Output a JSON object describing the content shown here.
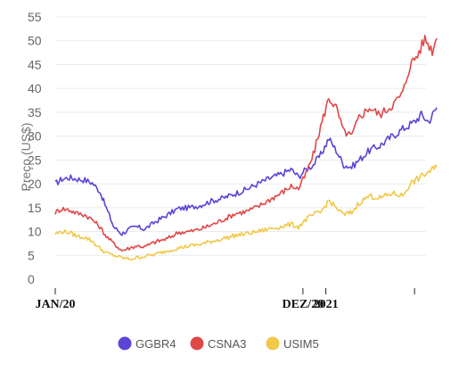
{
  "chart_data": {
    "type": "line",
    "ylabel": "Preço (US$)",
    "ylim": [
      0,
      55
    ],
    "yticks": [
      0,
      5,
      10,
      15,
      20,
      25,
      30,
      35,
      40,
      45,
      50,
      55
    ],
    "xlim": [
      "2020-01-01",
      "2021-05-31"
    ],
    "xticks": [
      {
        "label": "JAN/20",
        "date": "2020-01-01"
      },
      {
        "label": "DEZ/20",
        "date": "2020-12-01"
      },
      {
        "label": "2021",
        "date": "2021-01-01"
      }
    ],
    "grid": "horizontal",
    "legend_position": "bottom",
    "series": [
      {
        "name": "GGBR4",
        "color": "#5b44d6",
        "points": [
          [
            "2020-01-01",
            20.0
          ],
          [
            "2020-01-10",
            21.0
          ],
          [
            "2020-01-20",
            21.3
          ],
          [
            "2020-01-31",
            21.0
          ],
          [
            "2020-02-10",
            20.8
          ],
          [
            "2020-02-20",
            20.2
          ],
          [
            "2020-03-01",
            18.5
          ],
          [
            "2020-03-10",
            15.0
          ],
          [
            "2020-03-20",
            11.0
          ],
          [
            "2020-03-31",
            9.5
          ],
          [
            "2020-04-10",
            10.5
          ],
          [
            "2020-04-20",
            11.0
          ],
          [
            "2020-05-01",
            10.5
          ],
          [
            "2020-05-15",
            12.0
          ],
          [
            "2020-06-01",
            13.5
          ],
          [
            "2020-06-15",
            14.8
          ],
          [
            "2020-07-01",
            15.0
          ],
          [
            "2020-07-15",
            15.5
          ],
          [
            "2020-08-01",
            16.5
          ],
          [
            "2020-08-15",
            17.0
          ],
          [
            "2020-09-01",
            18.0
          ],
          [
            "2020-09-15",
            18.8
          ],
          [
            "2020-10-01",
            20.0
          ],
          [
            "2020-10-15",
            21.0
          ],
          [
            "2020-11-01",
            22.0
          ],
          [
            "2020-11-15",
            23.0
          ],
          [
            "2020-11-25",
            21.5
          ],
          [
            "2020-12-05",
            23.0
          ],
          [
            "2020-12-15",
            24.0
          ],
          [
            "2020-12-25",
            26.0
          ],
          [
            "2021-01-05",
            29.5
          ],
          [
            "2021-01-15",
            27.0
          ],
          [
            "2021-01-25",
            24.0
          ],
          [
            "2021-02-05",
            23.5
          ],
          [
            "2021-02-15",
            25.0
          ],
          [
            "2021-03-01",
            27.0
          ],
          [
            "2021-03-15",
            28.0
          ],
          [
            "2021-04-01",
            30.0
          ],
          [
            "2021-04-15",
            31.5
          ],
          [
            "2021-05-01",
            33.0
          ],
          [
            "2021-05-10",
            34.5
          ],
          [
            "2021-05-20",
            33.0
          ],
          [
            "2021-05-31",
            36.0
          ]
        ]
      },
      {
        "name": "CSNA3",
        "color": "#e04848",
        "points": [
          [
            "2020-01-01",
            14.0
          ],
          [
            "2020-01-10",
            14.8
          ],
          [
            "2020-01-20",
            14.5
          ],
          [
            "2020-01-31",
            13.8
          ],
          [
            "2020-02-10",
            13.5
          ],
          [
            "2020-02-20",
            12.5
          ],
          [
            "2020-03-01",
            11.0
          ],
          [
            "2020-03-10",
            9.0
          ],
          [
            "2020-03-20",
            7.5
          ],
          [
            "2020-03-31",
            6.0
          ],
          [
            "2020-04-10",
            6.5
          ],
          [
            "2020-04-20",
            7.0
          ],
          [
            "2020-05-01",
            6.8
          ],
          [
            "2020-05-15",
            7.8
          ],
          [
            "2020-06-01",
            8.5
          ],
          [
            "2020-06-15",
            9.8
          ],
          [
            "2020-07-01",
            10.0
          ],
          [
            "2020-07-15",
            10.5
          ],
          [
            "2020-08-01",
            11.5
          ],
          [
            "2020-08-15",
            12.5
          ],
          [
            "2020-09-01",
            13.8
          ],
          [
            "2020-09-15",
            14.2
          ],
          [
            "2020-10-01",
            15.2
          ],
          [
            "2020-10-15",
            16.5
          ],
          [
            "2020-11-01",
            18.0
          ],
          [
            "2020-11-15",
            19.5
          ],
          [
            "2020-11-25",
            19.0
          ],
          [
            "2020-12-05",
            22.0
          ],
          [
            "2020-12-15",
            26.0
          ],
          [
            "2020-12-25",
            32.0
          ],
          [
            "2021-01-05",
            38.0
          ],
          [
            "2021-01-15",
            36.0
          ],
          [
            "2021-01-25",
            31.0
          ],
          [
            "2021-02-05",
            30.0
          ],
          [
            "2021-02-15",
            34.0
          ],
          [
            "2021-03-01",
            36.0
          ],
          [
            "2021-03-15",
            34.5
          ],
          [
            "2021-04-01",
            36.5
          ],
          [
            "2021-04-15",
            39.0
          ],
          [
            "2021-04-25",
            45.0
          ],
          [
            "2021-05-05",
            47.0
          ],
          [
            "2021-05-15",
            50.5
          ],
          [
            "2021-05-25",
            48.0
          ],
          [
            "2021-05-31",
            50.5
          ]
        ]
      },
      {
        "name": "USIM5",
        "color": "#f0c84a",
        "points": [
          [
            "2020-01-01",
            9.5
          ],
          [
            "2020-01-10",
            10.0
          ],
          [
            "2020-01-20",
            9.8
          ],
          [
            "2020-01-31",
            9.0
          ],
          [
            "2020-02-10",
            8.8
          ],
          [
            "2020-02-20",
            8.0
          ],
          [
            "2020-03-01",
            6.5
          ],
          [
            "2020-03-10",
            5.5
          ],
          [
            "2020-03-20",
            5.0
          ],
          [
            "2020-03-31",
            4.5
          ],
          [
            "2020-04-10",
            4.2
          ],
          [
            "2020-04-20",
            4.5
          ],
          [
            "2020-05-01",
            4.8
          ],
          [
            "2020-05-15",
            5.2
          ],
          [
            "2020-06-01",
            6.0
          ],
          [
            "2020-06-15",
            6.5
          ],
          [
            "2020-07-01",
            7.0
          ],
          [
            "2020-07-15",
            7.3
          ],
          [
            "2020-08-01",
            8.0
          ],
          [
            "2020-08-15",
            8.5
          ],
          [
            "2020-09-01",
            9.2
          ],
          [
            "2020-09-15",
            9.5
          ],
          [
            "2020-10-01",
            10.0
          ],
          [
            "2020-10-15",
            10.5
          ],
          [
            "2020-11-01",
            11.0
          ],
          [
            "2020-11-15",
            11.5
          ],
          [
            "2020-11-25",
            11.0
          ],
          [
            "2020-12-05",
            12.5
          ],
          [
            "2020-12-15",
            13.5
          ],
          [
            "2020-12-25",
            14.0
          ],
          [
            "2021-01-05",
            16.5
          ],
          [
            "2021-01-15",
            15.0
          ],
          [
            "2021-01-25",
            13.5
          ],
          [
            "2021-02-05",
            14.0
          ],
          [
            "2021-02-15",
            16.0
          ],
          [
            "2021-03-01",
            17.5
          ],
          [
            "2021-03-15",
            17.0
          ],
          [
            "2021-04-01",
            18.0
          ],
          [
            "2021-04-15",
            17.5
          ],
          [
            "2021-04-25",
            20.0
          ],
          [
            "2021-05-10",
            21.5
          ],
          [
            "2021-05-20",
            22.5
          ],
          [
            "2021-05-31",
            23.5
          ]
        ]
      }
    ]
  }
}
